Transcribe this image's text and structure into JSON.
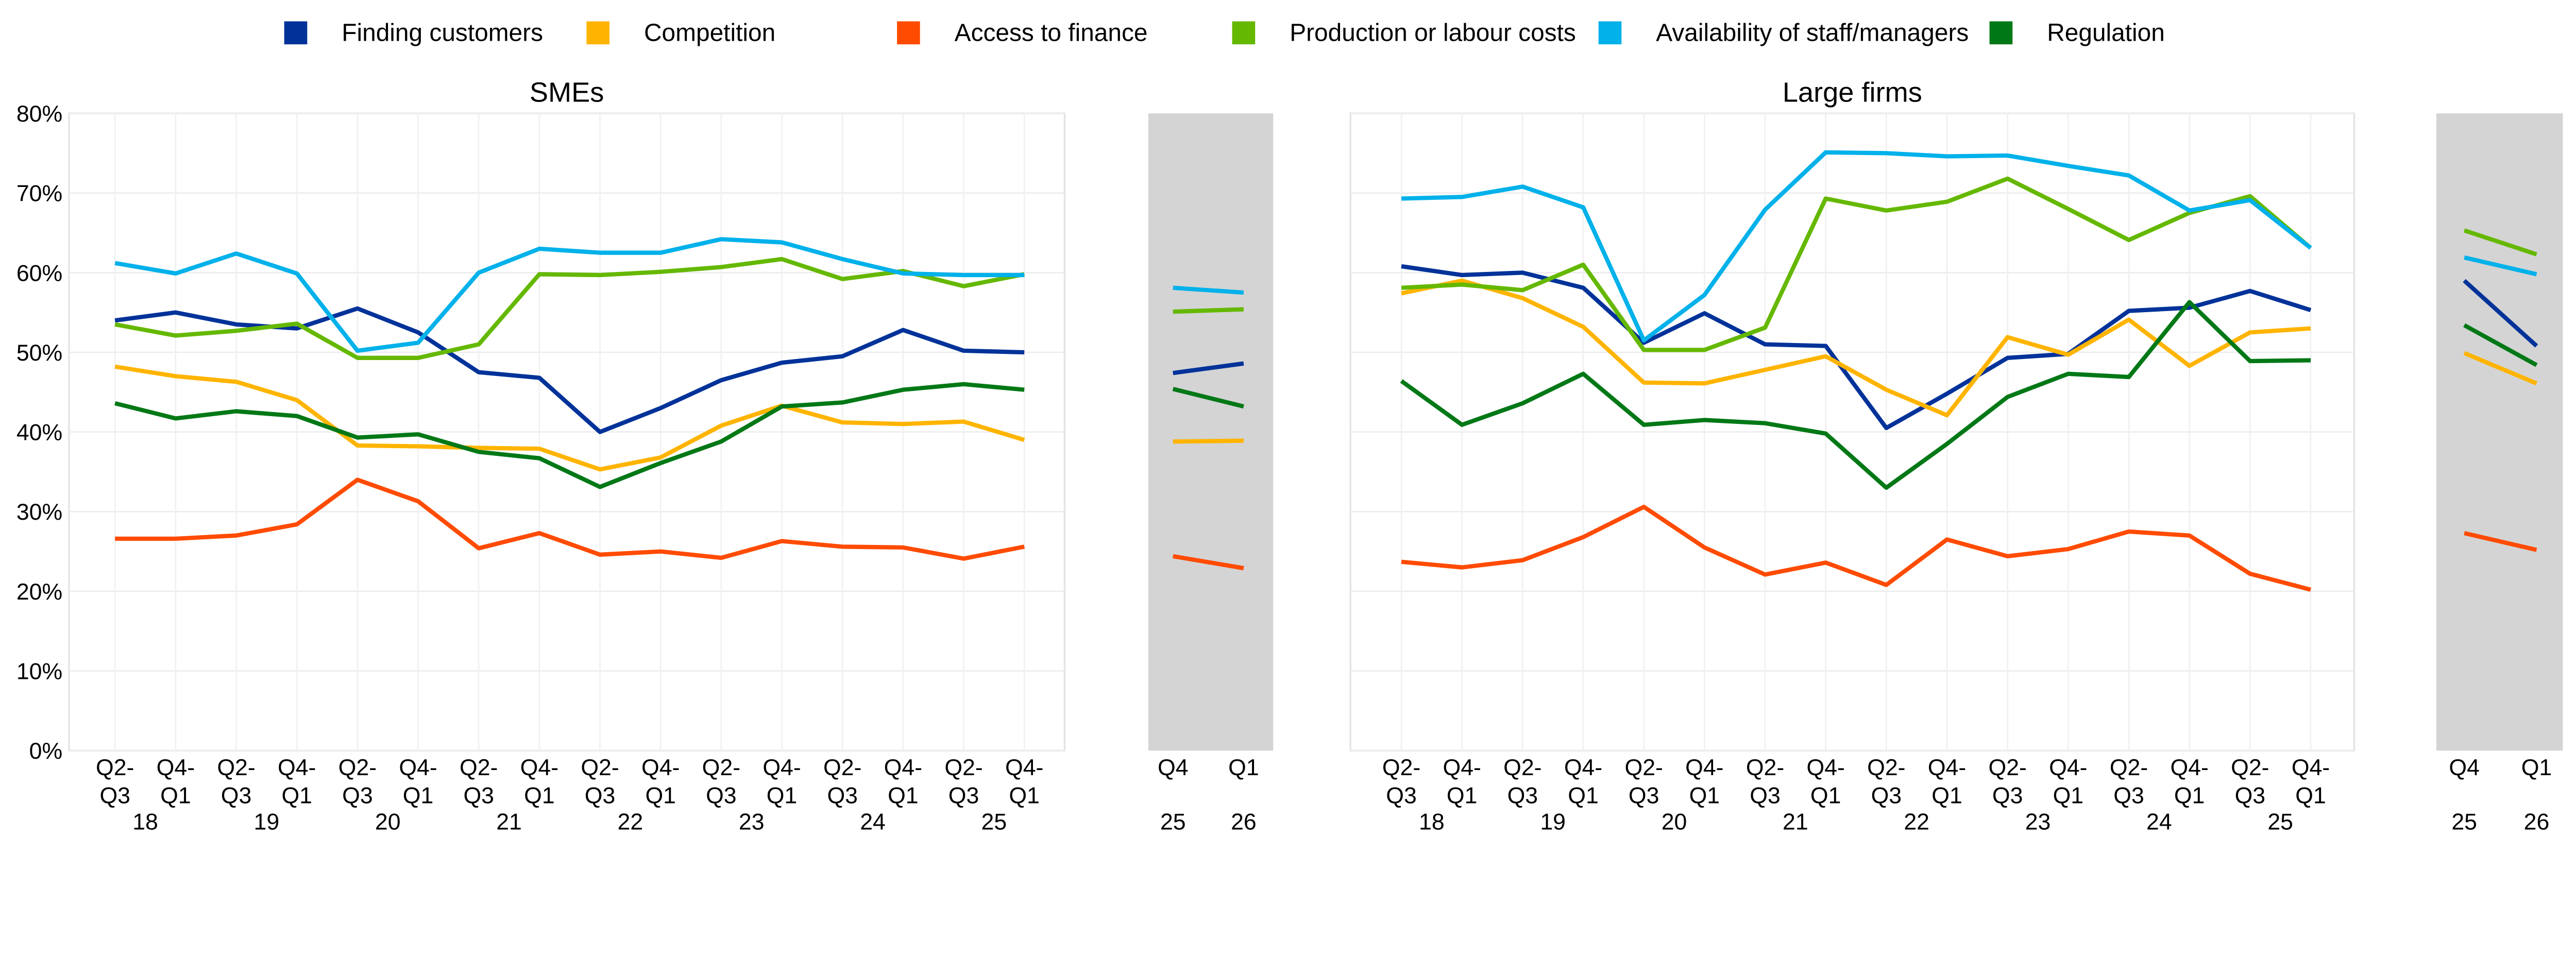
{
  "chart_data": [
    {
      "type": "line",
      "title": "SMEs",
      "ylim": [
        0,
        80
      ],
      "yticks": [
        "0%",
        "10%",
        "20%",
        "30%",
        "40%",
        "50%",
        "60%",
        "70%",
        "80%"
      ],
      "grid": true,
      "x_labels": [
        [
          "Q2-",
          "Q3"
        ],
        [
          "Q4-",
          "Q1"
        ],
        [
          "Q2-",
          "Q3"
        ],
        [
          "Q4-",
          "Q1"
        ],
        [
          "Q2-",
          "Q3"
        ],
        [
          "Q4-",
          "Q1"
        ],
        [
          "Q2-",
          "Q3"
        ],
        [
          "Q4-",
          "Q1"
        ],
        [
          "Q2-",
          "Q3"
        ],
        [
          "Q4-",
          "Q1"
        ],
        [
          "Q2-",
          "Q3"
        ],
        [
          "Q4-",
          "Q1"
        ],
        [
          "Q2-",
          "Q3"
        ],
        [
          "Q4-",
          "Q1"
        ],
        [
          "Q2-",
          "Q3"
        ],
        [
          "Q4-",
          "Q1"
        ]
      ],
      "years": [
        "18",
        "19",
        "20",
        "21",
        "22",
        "23",
        "24",
        "25"
      ],
      "series": [
        {
          "name": "Finding customers",
          "color": "#003299",
          "values": [
            54,
            55,
            53.5,
            53,
            55.5,
            52.5,
            47.5,
            46.8,
            40,
            43,
            46.5,
            48.7,
            49.5,
            52.8,
            50.2,
            50
          ]
        },
        {
          "name": "Competition",
          "color": "#FFB400",
          "values": [
            48.2,
            47,
            46.3,
            44,
            38.3,
            38.2,
            38,
            37.9,
            35.3,
            36.8,
            40.8,
            43.3,
            41.2,
            41,
            41.3,
            39
          ]
        },
        {
          "name": "Access to finance",
          "color": "#FF4B00",
          "values": [
            26.6,
            26.6,
            27,
            28.4,
            34,
            31.3,
            25.4,
            27.3,
            24.6,
            25,
            24.2,
            26.3,
            25.6,
            25.5,
            24.1,
            25.6
          ]
        },
        {
          "name": "Production or labour costs",
          "color": "#65B800",
          "values": [
            53.5,
            52.1,
            52.7,
            53.6,
            49.3,
            49.3,
            51,
            59.8,
            59.7,
            60.1,
            60.7,
            61.7,
            59.2,
            60.2,
            58.3,
            59.8
          ]
        },
        {
          "name": "Availability of staff/managers",
          "color": "#00B1EA",
          "values": [
            61.2,
            59.9,
            62.4,
            59.9,
            50.2,
            51.2,
            60,
            63,
            62.5,
            62.5,
            64.2,
            63.8,
            61.7,
            59.9,
            59.7,
            59.7
          ]
        },
        {
          "name": "Regulation",
          "color": "#007816",
          "values": [
            43.6,
            41.7,
            42.6,
            42,
            39.3,
            39.7,
            37.5,
            36.7,
            33.1,
            36.1,
            38.8,
            43.2,
            43.7,
            45.3,
            46,
            45.3
          ]
        }
      ],
      "expectations": {
        "x_labels": [
          "Q4",
          "Q1"
        ],
        "years": [
          "25",
          "26"
        ],
        "values": {
          "Finding customers": [
            47.4,
            48.6
          ],
          "Competition": [
            38.8,
            38.9
          ],
          "Access to finance": [
            24.4,
            22.9
          ],
          "Production or labour costs": [
            55.1,
            55.4
          ],
          "Availability of staff/managers": [
            58.1,
            57.5
          ],
          "Regulation": [
            45.4,
            43.2
          ]
        }
      }
    },
    {
      "type": "line",
      "title": "Large firms",
      "ylim": [
        0,
        80
      ],
      "grid": true,
      "series": [
        {
          "name": "Finding customers",
          "color": "#003299",
          "values": [
            60.8,
            59.7,
            60,
            58.1,
            51.2,
            54.9,
            51,
            50.8,
            40.5,
            44.8,
            49.3,
            49.8,
            55.2,
            55.6,
            57.7,
            55.3
          ]
        },
        {
          "name": "Competition",
          "color": "#FFB400",
          "values": [
            57.4,
            59,
            56.8,
            53.2,
            46.2,
            46.1,
            47.8,
            49.5,
            45.3,
            42.1,
            51.9,
            49.7,
            54.1,
            48.3,
            52.5,
            53
          ]
        },
        {
          "name": "Access to finance",
          "color": "#FF4B00",
          "values": [
            23.7,
            23,
            23.9,
            26.8,
            30.6,
            25.5,
            22.1,
            23.6,
            20.8,
            26.5,
            24.4,
            25.3,
            27.5,
            27,
            22.2,
            20.2
          ]
        },
        {
          "name": "Production or labour costs",
          "color": "#65B800",
          "values": [
            58.1,
            58.5,
            57.8,
            61,
            50.3,
            50.3,
            53.1,
            69.3,
            67.8,
            68.9,
            71.8,
            68,
            64.1,
            67.5,
            69.6,
            63.1
          ]
        },
        {
          "name": "Availability of staff/managers",
          "color": "#00B1EA",
          "values": [
            69.3,
            69.5,
            70.8,
            68.2,
            51.5,
            57.2,
            67.9,
            75.1,
            75,
            74.6,
            74.7,
            73.4,
            72.2,
            67.8,
            69.1,
            63.1
          ]
        },
        {
          "name": "Regulation",
          "color": "#007816",
          "values": [
            46.4,
            40.9,
            43.6,
            47.3,
            40.9,
            41.5,
            41.1,
            39.8,
            33,
            38.5,
            44.4,
            47.3,
            46.9,
            56.3,
            48.9,
            49
          ]
        }
      ],
      "expectations": {
        "values": {
          "Finding customers": [
            59,
            50.8
          ],
          "Competition": [
            49.9,
            46.1
          ],
          "Access to finance": [
            27.3,
            25.2
          ],
          "Production or labour costs": [
            65.3,
            62.3
          ],
          "Availability of staff/managers": [
            61.9,
            59.8
          ],
          "Regulation": [
            53.4,
            48.4
          ]
        }
      }
    }
  ],
  "legend": {
    "placement": "top",
    "items": [
      "Finding customers",
      "Competition",
      "Access to finance",
      "Production or labour costs",
      "Availability of staff/managers",
      "Regulation"
    ]
  },
  "expectations_shading": "#D4D4D4"
}
